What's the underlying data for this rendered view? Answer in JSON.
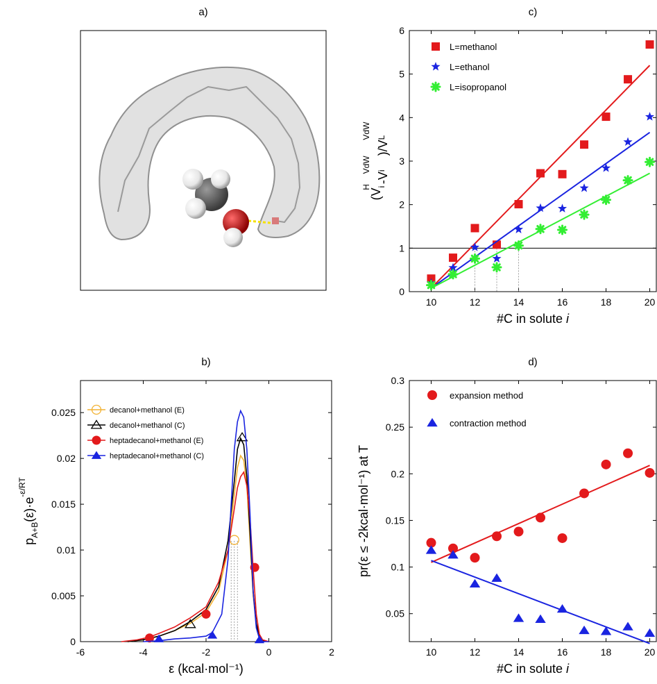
{
  "panels": {
    "a": {
      "label": "a)"
    }
  },
  "colors": {
    "red": "#e31a1c",
    "blue": "#1a24e0",
    "green": "#33ee33",
    "orange": "#f2b233",
    "black": "#000000"
  },
  "chart_data": [
    {
      "id": "c",
      "panel_label": "c)",
      "type": "scatter",
      "title": "",
      "xlabel": "#C in solute",
      "xlabel_italic": "i",
      "ylabel": "(V_i^H - V_i^VdW)/V_L^VdW",
      "xlim": [
        9,
        20.3
      ],
      "ylim": [
        0,
        6
      ],
      "xticks": [
        10,
        12,
        14,
        16,
        18,
        20
      ],
      "yticks": [
        0,
        1,
        2,
        3,
        4,
        5,
        6
      ],
      "hline": 1,
      "crossings": [
        12,
        13,
        14
      ],
      "grid": false,
      "legend_position": "top-left",
      "series": [
        {
          "name": "L=methanol",
          "marker": "square",
          "color": "#e31a1c",
          "x": [
            10,
            11,
            12,
            13,
            14,
            15,
            16,
            17,
            18,
            19,
            20
          ],
          "y": [
            0.3,
            0.78,
            1.46,
            1.08,
            2.01,
            2.72,
            2.7,
            3.38,
            4.02,
            4.88,
            5.68
          ],
          "fit": [
            [
              10,
              0.08
            ],
            [
              20,
              5.2
            ]
          ]
        },
        {
          "name": "L=ethanol",
          "marker": "star",
          "color": "#1a24e0",
          "x": [
            10,
            11,
            12,
            13,
            14,
            15,
            16,
            17,
            18,
            19,
            20
          ],
          "y": [
            0.2,
            0.55,
            1.02,
            0.76,
            1.43,
            1.92,
            1.91,
            2.38,
            2.84,
            3.44,
            4.02
          ],
          "fit": [
            [
              10,
              0.08
            ],
            [
              20,
              3.66
            ]
          ]
        },
        {
          "name": "L=isopropanol",
          "marker": "asterisk",
          "color": "#33ee33",
          "x": [
            10,
            11,
            12,
            13,
            14,
            15,
            16,
            17,
            18,
            19,
            20
          ],
          "y": [
            0.15,
            0.4,
            0.76,
            0.56,
            1.06,
            1.44,
            1.42,
            1.77,
            2.11,
            2.56,
            2.98
          ],
          "fit": [
            [
              10,
              0.08
            ],
            [
              20,
              2.72
            ]
          ]
        }
      ]
    },
    {
      "id": "b",
      "panel_label": "b)",
      "type": "line",
      "title": "",
      "xlabel": "ε (kcal·mol⁻¹)",
      "ylabel": "p_A+B(ε)·e^-ε/RT",
      "xlim": [
        -6,
        2
      ],
      "ylim": [
        0,
        0.0285
      ],
      "xticks": [
        -6,
        -4,
        -2,
        0,
        2
      ],
      "yticks": [
        0,
        0.005,
        0.01,
        0.015,
        0.02,
        0.025
      ],
      "ytick_labels": [
        "0",
        "0.005",
        "0.01",
        "0.015",
        "0.02",
        "0.025"
      ],
      "vlines": [
        -1.2,
        -1.1,
        -1.0
      ],
      "grid": false,
      "legend_position": "top-left",
      "series": [
        {
          "name": "decanol+methanol (E)",
          "marker": "circle-open",
          "color": "#f2b233",
          "curve": [
            [
              -4.5,
              0.0
            ],
            [
              -4.0,
              0.0002
            ],
            [
              -3.5,
              0.0006
            ],
            [
              -3.0,
              0.0012
            ],
            [
              -2.5,
              0.002
            ],
            [
              -2.0,
              0.0032
            ],
            [
              -1.6,
              0.0055
            ],
            [
              -1.3,
              0.01
            ],
            [
              -1.1,
              0.016
            ],
            [
              -1.0,
              0.019
            ],
            [
              -0.9,
              0.0203
            ],
            [
              -0.8,
              0.0198
            ],
            [
              -0.7,
              0.017
            ],
            [
              -0.6,
              0.011
            ],
            [
              -0.5,
              0.005
            ],
            [
              -0.4,
              0.0018
            ],
            [
              -0.3,
              0.0005
            ],
            [
              -0.2,
              0.0001
            ],
            [
              0.0,
              0.0
            ]
          ],
          "markers": [
            [
              -1.1,
              0.0111
            ]
          ]
        },
        {
          "name": "decanol+methanol (C)",
          "marker": "triangle-open",
          "color": "#000000",
          "curve": [
            [
              -4.5,
              0.0
            ],
            [
              -4.0,
              0.0002
            ],
            [
              -3.5,
              0.0006
            ],
            [
              -3.0,
              0.0012
            ],
            [
              -2.5,
              0.0022
            ],
            [
              -2.0,
              0.0035
            ],
            [
              -1.6,
              0.006
            ],
            [
              -1.3,
              0.011
            ],
            [
              -1.1,
              0.0175
            ],
            [
              -1.0,
              0.021
            ],
            [
              -0.9,
              0.0222
            ],
            [
              -0.8,
              0.0215
            ],
            [
              -0.7,
              0.018
            ],
            [
              -0.6,
              0.012
            ],
            [
              -0.5,
              0.0055
            ],
            [
              -0.4,
              0.002
            ],
            [
              -0.3,
              0.0006
            ],
            [
              -0.2,
              0.0001
            ],
            [
              0.0,
              0.0
            ]
          ],
          "markers": [
            [
              -2.5,
              0.0019
            ],
            [
              -0.85,
              0.0223
            ]
          ]
        },
        {
          "name": "heptadecanol+methanol (E)",
          "marker": "circle-filled",
          "color": "#e31a1c",
          "curve": [
            [
              -4.7,
              0.0
            ],
            [
              -4.2,
              0.0002
            ],
            [
              -3.8,
              0.0005
            ],
            [
              -3.5,
              0.0009
            ],
            [
              -3.0,
              0.0016
            ],
            [
              -2.5,
              0.0026
            ],
            [
              -2.0,
              0.0038
            ],
            [
              -1.6,
              0.0065
            ],
            [
              -1.3,
              0.01
            ],
            [
              -1.1,
              0.0145
            ],
            [
              -1.0,
              0.0168
            ],
            [
              -0.9,
              0.018
            ],
            [
              -0.8,
              0.0185
            ],
            [
              -0.7,
              0.017
            ],
            [
              -0.6,
              0.0135
            ],
            [
              -0.5,
              0.008
            ],
            [
              -0.4,
              0.003
            ],
            [
              -0.3,
              0.0008
            ],
            [
              -0.2,
              0.0002
            ],
            [
              0.0,
              0.0
            ]
          ],
          "markers": [
            [
              -3.8,
              0.0004
            ],
            [
              -2.0,
              0.003
            ],
            [
              -0.45,
              0.0081
            ]
          ]
        },
        {
          "name": "heptadecanol+methanol (C)",
          "marker": "triangle-filled",
          "color": "#1a24e0",
          "curve": [
            [
              -4.0,
              0.0
            ],
            [
              -3.5,
              0.0001
            ],
            [
              -3.0,
              0.0003
            ],
            [
              -2.5,
              0.0004
            ],
            [
              -2.0,
              0.0006
            ],
            [
              -1.8,
              0.001
            ],
            [
              -1.5,
              0.003
            ],
            [
              -1.3,
              0.009
            ],
            [
              -1.2,
              0.015
            ],
            [
              -1.1,
              0.021
            ],
            [
              -1.0,
              0.024
            ],
            [
              -0.9,
              0.0252
            ],
            [
              -0.8,
              0.0245
            ],
            [
              -0.7,
              0.021
            ],
            [
              -0.6,
              0.014
            ],
            [
              -0.5,
              0.0055
            ],
            [
              -0.4,
              0.0015
            ],
            [
              -0.3,
              0.0003
            ],
            [
              -0.2,
              0.0
            ],
            [
              0.0,
              0.0
            ]
          ],
          "markers": [
            [
              -3.5,
              0.0003
            ],
            [
              -1.8,
              0.0007
            ],
            [
              -0.3,
              0.0002
            ]
          ]
        }
      ]
    },
    {
      "id": "d",
      "panel_label": "d)",
      "type": "scatter",
      "title": "",
      "xlabel": "#C in solute",
      "xlabel_italic": "i",
      "ylabel": "pr(ε ≤ -2kcal·mol⁻¹) at T",
      "xlim": [
        9,
        20.3
      ],
      "ylim": [
        0.02,
        0.3
      ],
      "xticks": [
        10,
        12,
        14,
        16,
        18,
        20
      ],
      "yticks": [
        0.05,
        0.1,
        0.15,
        0.2,
        0.25,
        0.3
      ],
      "ytick_labels": [
        "0.05",
        "0.1",
        "0.15",
        "0.2",
        "0.25",
        "0.3"
      ],
      "grid": false,
      "legend_position": "top-left",
      "series": [
        {
          "name": "expansion method",
          "marker": "circle-filled",
          "color": "#e31a1c",
          "x": [
            10,
            11,
            12,
            13,
            14,
            15,
            16,
            17,
            18,
            19,
            20
          ],
          "y": [
            0.126,
            0.12,
            0.11,
            0.133,
            0.138,
            0.153,
            0.131,
            0.179,
            0.21,
            0.222,
            0.201
          ],
          "fit": [
            [
              10,
              0.105
            ],
            [
              20,
              0.209
            ]
          ]
        },
        {
          "name": "contraction method",
          "marker": "triangle-filled",
          "color": "#1a24e0",
          "x": [
            10,
            11,
            12,
            13,
            14,
            15,
            16,
            17,
            18,
            19,
            20
          ],
          "y": [
            0.118,
            0.113,
            0.082,
            0.088,
            0.045,
            0.044,
            0.055,
            0.032,
            0.031,
            0.036,
            0.029
          ],
          "fit": [
            [
              10,
              0.107
            ],
            [
              20,
              0.018
            ]
          ]
        }
      ]
    }
  ]
}
